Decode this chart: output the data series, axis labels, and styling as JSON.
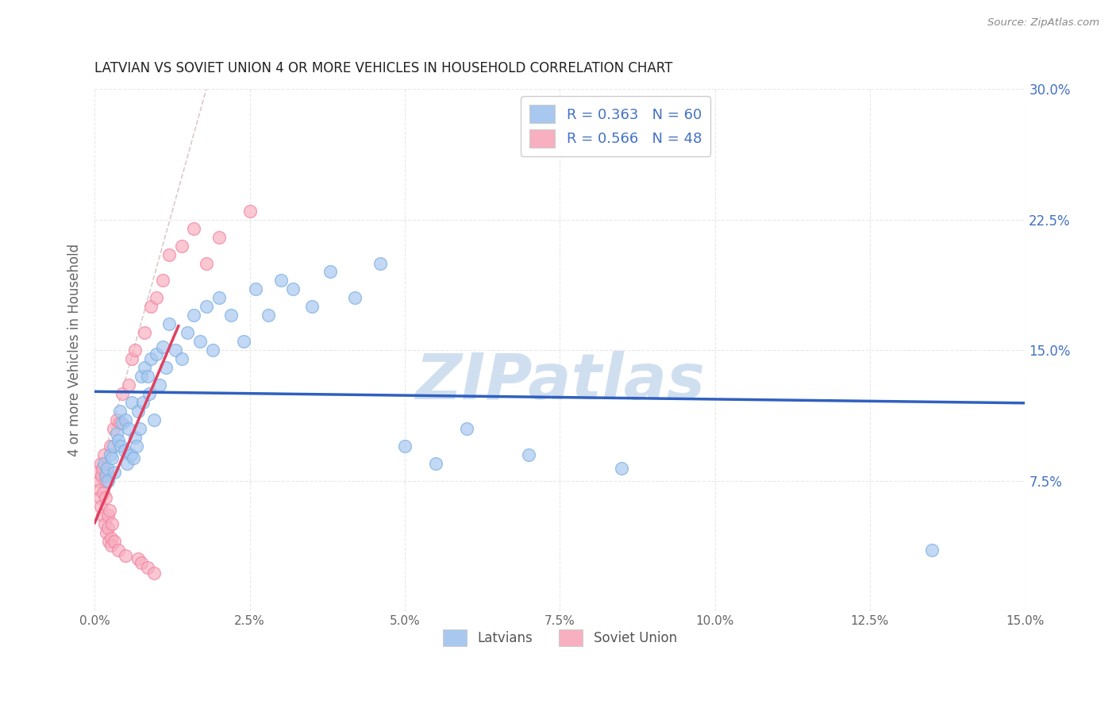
{
  "title": "LATVIAN VS SOVIET UNION 4 OR MORE VEHICLES IN HOUSEHOLD CORRELATION CHART",
  "source": "Source: ZipAtlas.com",
  "ylabel": "4 or more Vehicles in Household",
  "xlim": [
    0.0,
    15.0
  ],
  "ylim": [
    0.0,
    30.0
  ],
  "x_ticks": [
    0.0,
    2.5,
    5.0,
    7.5,
    10.0,
    12.5,
    15.0
  ],
  "y_ticks": [
    7.5,
    15.0,
    22.5,
    30.0
  ],
  "latvian_color": "#a8c8f0",
  "latvian_edge_color": "#7aaee0",
  "soviet_color": "#f8b0c0",
  "soviet_edge_color": "#f080a0",
  "latvian_line_color": "#3060c0",
  "soviet_line_color": "#e04060",
  "ref_line_color": "#d8c0c0",
  "watermark": "ZIPatlas",
  "watermark_color": "#d0dff0",
  "legend_label_latvians": "Latvians",
  "legend_label_soviet": "Soviet Union",
  "background_color": "#ffffff",
  "grid_color": "#e8e8e8",
  "title_color": "#222222",
  "source_color": "#888888",
  "ylabel_color": "#666666",
  "tick_color": "#666666",
  "right_tick_color": "#4472c4",
  "legend_text_color": "#4472c4",
  "latvian_x": [
    0.15,
    0.18,
    0.2,
    0.22,
    0.25,
    0.28,
    0.3,
    0.32,
    0.35,
    0.38,
    0.4,
    0.42,
    0.45,
    0.48,
    0.5,
    0.52,
    0.55,
    0.58,
    0.6,
    0.62,
    0.65,
    0.68,
    0.7,
    0.72,
    0.75,
    0.78,
    0.8,
    0.85,
    0.88,
    0.9,
    0.95,
    1.0,
    1.05,
    1.1,
    1.15,
    1.2,
    1.3,
    1.4,
    1.5,
    1.6,
    1.7,
    1.8,
    1.9,
    2.0,
    2.2,
    2.4,
    2.6,
    2.8,
    3.0,
    3.2,
    3.5,
    3.8,
    4.2,
    4.6,
    5.0,
    5.5,
    6.0,
    7.0,
    8.5,
    13.5
  ],
  "latvian_y": [
    8.5,
    7.8,
    8.2,
    7.5,
    9.0,
    8.8,
    9.5,
    8.0,
    10.2,
    9.8,
    11.5,
    9.5,
    10.8,
    9.2,
    11.0,
    8.5,
    10.5,
    9.0,
    12.0,
    8.8,
    10.0,
    9.5,
    11.5,
    10.5,
    13.5,
    12.0,
    14.0,
    13.5,
    12.5,
    14.5,
    11.0,
    14.8,
    13.0,
    15.2,
    14.0,
    16.5,
    15.0,
    14.5,
    16.0,
    17.0,
    15.5,
    17.5,
    15.0,
    18.0,
    17.0,
    15.5,
    18.5,
    17.0,
    19.0,
    18.5,
    17.5,
    19.5,
    18.0,
    20.0,
    9.5,
    8.5,
    10.5,
    9.0,
    8.2,
    3.5
  ],
  "soviet_x": [
    0.05,
    0.07,
    0.08,
    0.09,
    0.1,
    0.1,
    0.11,
    0.12,
    0.13,
    0.14,
    0.15,
    0.16,
    0.17,
    0.18,
    0.19,
    0.2,
    0.21,
    0.22,
    0.23,
    0.24,
    0.25,
    0.26,
    0.27,
    0.28,
    0.3,
    0.32,
    0.35,
    0.38,
    0.4,
    0.45,
    0.5,
    0.55,
    0.6,
    0.65,
    0.7,
    0.75,
    0.8,
    0.85,
    0.9,
    0.95,
    1.0,
    1.1,
    1.2,
    1.4,
    1.6,
    1.8,
    2.0,
    2.5
  ],
  "soviet_y": [
    8.0,
    7.5,
    7.0,
    6.5,
    8.5,
    6.0,
    7.8,
    8.2,
    5.5,
    6.8,
    9.0,
    5.0,
    6.5,
    7.5,
    4.5,
    8.0,
    5.5,
    4.8,
    4.0,
    5.8,
    9.5,
    4.2,
    3.8,
    5.0,
    10.5,
    4.0,
    11.0,
    3.5,
    10.8,
    12.5,
    3.2,
    13.0,
    14.5,
    15.0,
    3.0,
    2.8,
    16.0,
    2.5,
    17.5,
    2.2,
    18.0,
    19.0,
    20.5,
    21.0,
    22.0,
    20.0,
    21.5,
    23.0
  ]
}
